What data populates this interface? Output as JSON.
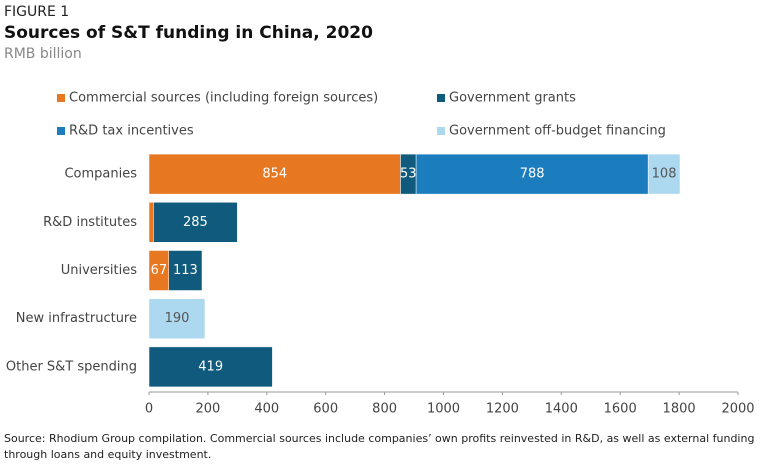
{
  "chart_data": {
    "type": "stacked-barh",
    "label": "FIGURE 1",
    "title": "Sources of S&T funding in China, 2020",
    "subtitle": "RMB billion",
    "source": "Source: Rhodium Group compilation. Commercial sources include companies’ own profits reinvested in R&D, as well as external funding through loans and equity investment.",
    "categories": [
      "Companies",
      "R&D institutes",
      "Universities",
      "New infrastructure",
      "Other S&T spending"
    ],
    "series": [
      {
        "name": "Commercial sources (including foreign sources)",
        "color": "#e87722",
        "values": [
          854,
          15,
          67,
          null,
          null
        ]
      },
      {
        "name": "Government grants",
        "color": "#0f5a7d",
        "values": [
          53,
          285,
          113,
          null,
          419
        ]
      },
      {
        "name": "R&D tax incentives",
        "color": "#1b7dbd",
        "values": [
          788,
          null,
          null,
          null,
          null
        ]
      },
      {
        "name": "Government off-budget financing",
        "color": "#acd8f0",
        "values": [
          108,
          null,
          null,
          190,
          null
        ]
      }
    ],
    "xlim": [
      0,
      2000
    ],
    "xticks": [
      0,
      200,
      400,
      600,
      800,
      1000,
      1200,
      1400,
      1600,
      1800,
      2000
    ],
    "legend": "top"
  }
}
